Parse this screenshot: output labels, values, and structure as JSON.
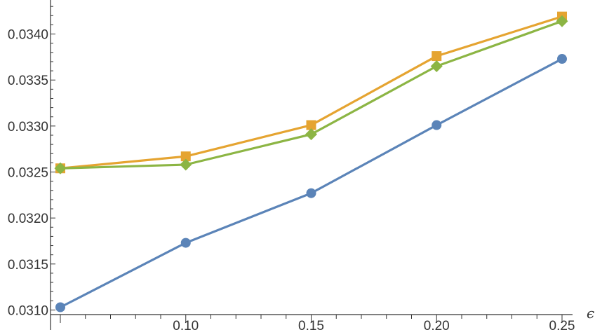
{
  "chart_data": {
    "type": "line",
    "xlabel": "ϵ",
    "ylabel": "",
    "xlim": [
      0.05,
      0.25
    ],
    "ylim": [
      0.03095,
      0.03437
    ],
    "x": [
      0.05,
      0.1,
      0.15,
      0.2,
      0.25
    ],
    "x_ticks": [
      0.1,
      0.15,
      0.2,
      0.25
    ],
    "x_tick_labels": [
      "0.10",
      "0.15",
      "0.20",
      "0.25"
    ],
    "y_ticks": [
      0.031,
      0.0315,
      0.032,
      0.0325,
      0.033,
      0.0335,
      0.034
    ],
    "y_tick_labels": [
      "0.0310",
      "0.0315",
      "0.0320",
      "0.0325",
      "0.0330",
      "0.0335",
      "0.0340"
    ],
    "grid": false,
    "legend": "none",
    "series": [
      {
        "color": "#5b84b8",
        "marker": "circle",
        "values": [
          0.03103,
          0.03173,
          0.03227,
          0.03301,
          0.03373
        ]
      },
      {
        "color": "#e5a431",
        "marker": "square",
        "values": [
          0.03254,
          0.03267,
          0.03301,
          0.03376,
          0.03419
        ]
      },
      {
        "color": "#8cb544",
        "marker": "diamond",
        "values": [
          0.03254,
          0.03258,
          0.03291,
          0.03365,
          0.03414
        ]
      }
    ]
  }
}
